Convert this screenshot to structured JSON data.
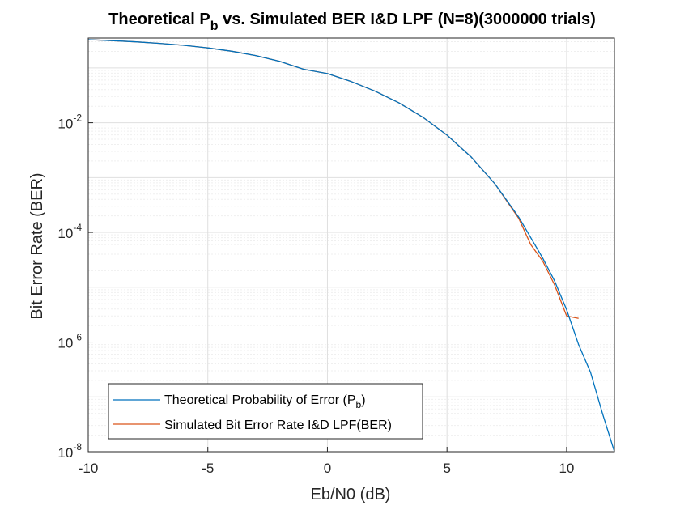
{
  "chart_data": {
    "type": "line",
    "title": {
      "main": "Theoretical P",
      "main_sub": "b",
      "rest": " vs. Simulated BER I&D LPF (N=8)(3000000 trials)"
    },
    "xlabel": "Eb/N0 (dB)",
    "ylabel": "Bit Error Rate (BER)",
    "xlim": [
      -10,
      12
    ],
    "ylim": [
      1e-08,
      0.35
    ],
    "yscale": "log",
    "grid": true,
    "minor_grid": true,
    "xticks": [
      -10,
      -5,
      0,
      5,
      10
    ],
    "xtick_labels": [
      "-10",
      "-5",
      "0",
      "5",
      "10"
    ],
    "yticks": [
      {
        "value": 1e-08,
        "base": "10",
        "exp": "-8"
      },
      {
        "value": 1e-06,
        "base": "10",
        "exp": "-6"
      },
      {
        "value": 0.0001,
        "base": "10",
        "exp": "-4"
      },
      {
        "value": 0.01,
        "base": "10",
        "exp": "-2"
      }
    ],
    "legend_position": "bottom-left",
    "series": [
      {
        "name": "Theoretical Probability of Error (P",
        "name_sub": "b",
        "name_suffix": ")",
        "color": "#0072BD",
        "x": [
          -10,
          -9,
          -8,
          -7,
          -6,
          -5,
          -4,
          -3,
          -2,
          -1,
          0,
          1,
          2,
          3,
          4,
          5,
          6,
          7,
          8,
          9,
          9.5,
          10,
          10.5,
          11,
          11.5,
          12
        ],
        "y": [
          0.327,
          0.3141,
          0.2986,
          0.2798,
          0.2574,
          0.2313,
          0.2014,
          0.1679,
          0.1318,
          0.0947,
          0.0786,
          0.0563,
          0.0375,
          0.0229,
          0.0125,
          0.00595,
          0.0024,
          0.00077,
          0.00019,
          3.4e-05,
          1.3e-05,
          3.9e-06,
          9e-07,
          2.8e-07,
          5e-08,
          1e-08
        ]
      },
      {
        "name": "Simulated Bit Error Rate I&D LPF(BER)",
        "color": "#D95319",
        "x": [
          -10,
          -9,
          -8,
          -7,
          -6,
          -5,
          -4,
          -3,
          -2,
          -1,
          0,
          1,
          2,
          3,
          4,
          5,
          6,
          7,
          8,
          8.5,
          9,
          9.5,
          10,
          10.5
        ],
        "y": [
          0.327,
          0.3141,
          0.2986,
          0.2798,
          0.2574,
          0.2313,
          0.2014,
          0.1679,
          0.1318,
          0.0947,
          0.0786,
          0.0563,
          0.0375,
          0.0229,
          0.0125,
          0.00595,
          0.0024,
          0.00077,
          0.00018,
          6e-05,
          3e-05,
          1.1e-05,
          3e-06,
          2.7e-06
        ]
      }
    ]
  },
  "colors": {
    "axis": "#262626",
    "grid_major": "#dfdfdf",
    "grid_minor": "#efefef",
    "background": "#ffffff"
  }
}
